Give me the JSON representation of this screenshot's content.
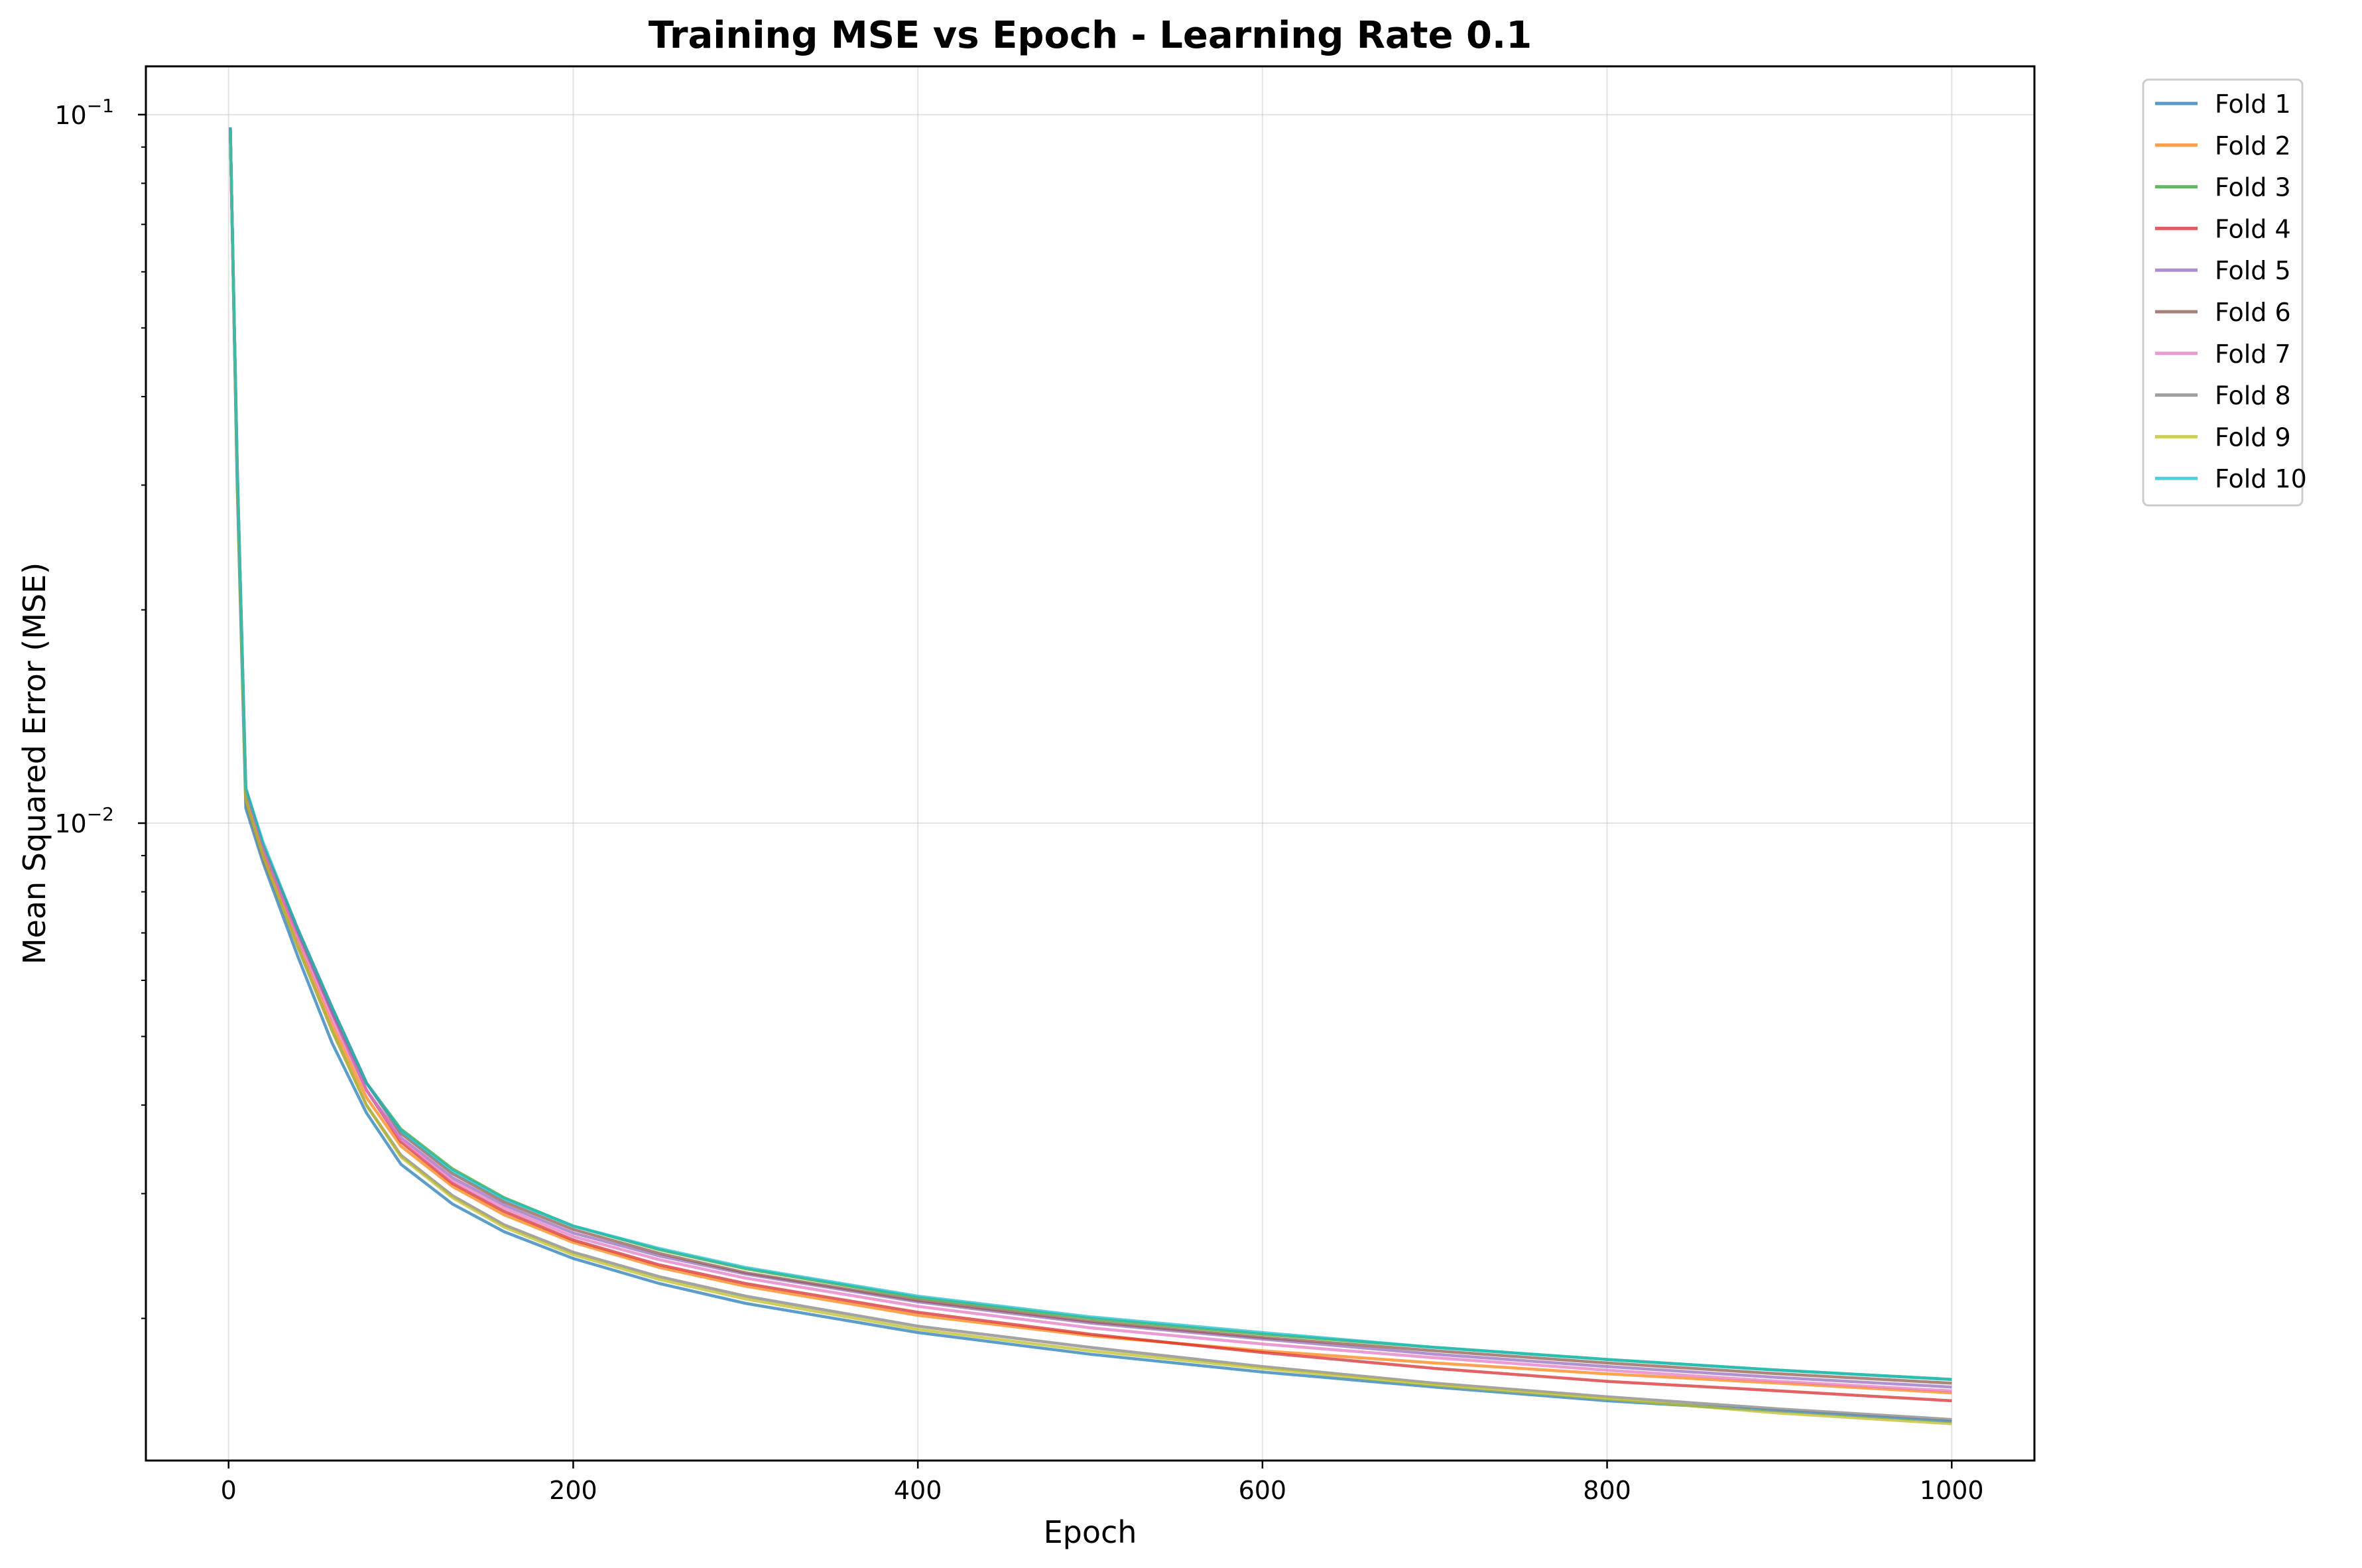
{
  "chart_data": {
    "type": "line",
    "title": "Training MSE vs Epoch - Learning Rate 0.1",
    "xlabel": "Epoch",
    "ylabel": "Mean Squared Error (MSE)",
    "xlim": [
      -48,
      1048
    ],
    "ylim": [
      0.00126,
      0.117
    ],
    "yscale": "log",
    "grid": true,
    "legend_position": "outside-top-right",
    "xticks": [
      0,
      200,
      400,
      600,
      800,
      1000
    ],
    "xtick_labels": [
      "0",
      "200",
      "400",
      "600",
      "800",
      "1000"
    ],
    "yticks": [
      {
        "value": 0.1,
        "base": "10",
        "exp": "−1"
      },
      {
        "value": 0.01,
        "base": "10",
        "exp": "−2"
      }
    ],
    "x": [
      1,
      5,
      10,
      20,
      40,
      60,
      80,
      100,
      130,
      160,
      200,
      250,
      300,
      400,
      500,
      600,
      700,
      800,
      900,
      1000
    ],
    "series": [
      {
        "name": "Fold 1",
        "color": "#1f77b4",
        "values": [
          0.096,
          0.03,
          0.0105,
          0.0088,
          0.0065,
          0.0049,
          0.0039,
          0.0033,
          0.0029,
          0.00265,
          0.00243,
          0.00224,
          0.0021,
          0.00191,
          0.00178,
          0.00168,
          0.0016,
          0.00153,
          0.00148,
          0.00143
        ]
      },
      {
        "name": "Fold 2",
        "color": "#ff7f0e",
        "values": [
          0.0955,
          0.031,
          0.0108,
          0.009,
          0.0068,
          0.0052,
          0.0041,
          0.0035,
          0.00307,
          0.0028,
          0.00256,
          0.00236,
          0.00222,
          0.00202,
          0.00189,
          0.0018,
          0.00173,
          0.00167,
          0.00162,
          0.00157
        ]
      },
      {
        "name": "Fold 3",
        "color": "#2ca02c",
        "values": [
          0.095,
          0.032,
          0.0112,
          0.0093,
          0.0071,
          0.0055,
          0.0043,
          0.0037,
          0.00325,
          0.00296,
          0.0027,
          0.0025,
          0.00235,
          0.00214,
          0.002,
          0.0019,
          0.00182,
          0.00175,
          0.00169,
          0.00164
        ]
      },
      {
        "name": "Fold 4",
        "color": "#d62728",
        "values": [
          0.0952,
          0.0312,
          0.0109,
          0.0091,
          0.007,
          0.0054,
          0.0042,
          0.00355,
          0.0031,
          0.00283,
          0.00258,
          0.00238,
          0.00224,
          0.00204,
          0.0019,
          0.00179,
          0.0017,
          0.00163,
          0.00158,
          0.00153
        ]
      },
      {
        "name": "Fold 5",
        "color": "#9467bd",
        "values": [
          0.0948,
          0.0315,
          0.011,
          0.0092,
          0.007,
          0.0054,
          0.0042,
          0.0036,
          0.00316,
          0.00289,
          0.00264,
          0.00245,
          0.00231,
          0.00211,
          0.00197,
          0.00187,
          0.00178,
          0.00171,
          0.00165,
          0.0016
        ]
      },
      {
        "name": "Fold 6",
        "color": "#8c564b",
        "values": [
          0.0953,
          0.0318,
          0.0111,
          0.0093,
          0.0071,
          0.0055,
          0.0043,
          0.00365,
          0.0032,
          0.00292,
          0.00267,
          0.00247,
          0.00232,
          0.00212,
          0.00198,
          0.00188,
          0.0018,
          0.00173,
          0.00167,
          0.00162
        ]
      },
      {
        "name": "Fold 7",
        "color": "#e377c2",
        "values": [
          0.0949,
          0.0314,
          0.011,
          0.0092,
          0.0069,
          0.0053,
          0.0042,
          0.00358,
          0.00313,
          0.00286,
          0.00261,
          0.00242,
          0.00228,
          0.00208,
          0.00194,
          0.00184,
          0.00176,
          0.00169,
          0.00163,
          0.00158
        ]
      },
      {
        "name": "Fold 8",
        "color": "#7f7f7f",
        "values": [
          0.0956,
          0.0305,
          0.0107,
          0.0089,
          0.0067,
          0.0051,
          0.004,
          0.0034,
          0.00298,
          0.00271,
          0.00248,
          0.00229,
          0.00215,
          0.00195,
          0.00182,
          0.00171,
          0.00162,
          0.00155,
          0.00149,
          0.00144
        ]
      },
      {
        "name": "Fold 9",
        "color": "#bcbd22",
        "values": [
          0.0951,
          0.0308,
          0.0108,
          0.009,
          0.0067,
          0.0051,
          0.004,
          0.00338,
          0.00296,
          0.00269,
          0.00246,
          0.00227,
          0.00213,
          0.00193,
          0.0018,
          0.0017,
          0.00161,
          0.00154,
          0.00147,
          0.00142
        ]
      },
      {
        "name": "Fold 10",
        "color": "#17becf",
        "values": [
          0.0954,
          0.032,
          0.0112,
          0.0094,
          0.0071,
          0.0055,
          0.0043,
          0.00368,
          0.00323,
          0.00295,
          0.0027,
          0.00251,
          0.00236,
          0.00215,
          0.00201,
          0.00191,
          0.00182,
          0.00175,
          0.00169,
          0.00164
        ]
      }
    ]
  }
}
